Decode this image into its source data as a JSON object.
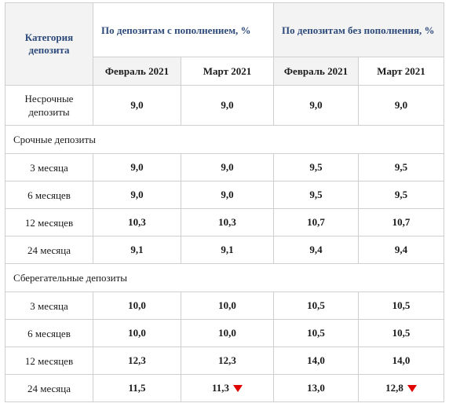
{
  "header": {
    "category": "Категория депозита",
    "group_with": "По депозитам с пополнением, %",
    "group_without": "По депозитам без пополнения, %",
    "months": [
      "Февраль 2021",
      "Март 2021",
      "Февраль 2021",
      "Март 2021"
    ]
  },
  "rows": [
    {
      "label": "Несрочные депозиты",
      "values": [
        "9,0",
        "9,0",
        "9,0",
        "9,0"
      ]
    },
    {
      "section": "Срочные  депозиты"
    },
    {
      "label": "3 месяца",
      "values": [
        "9,0",
        "9,0",
        "9,5",
        "9,5"
      ]
    },
    {
      "label": "6 месяцев",
      "values": [
        "9,0",
        "9,0",
        "9,5",
        "9,5"
      ]
    },
    {
      "label": "12 месяцев",
      "values": [
        "10,3",
        "10,3",
        "10,7",
        "10,7"
      ]
    },
    {
      "label": "24 месяца",
      "values": [
        "9,1",
        "9,1",
        "9,4",
        "9,4"
      ]
    },
    {
      "section": "Сберегательные  депозиты"
    },
    {
      "label": "3 месяца",
      "values": [
        "10,0",
        "10,0",
        "10,5",
        "10,5"
      ]
    },
    {
      "label": "6 месяцев",
      "values": [
        "10,0",
        "10,0",
        "10,5",
        "10,5"
      ]
    },
    {
      "label": "12 месяцев",
      "values": [
        "12,3",
        "12,3",
        "14,0",
        "14,0"
      ]
    },
    {
      "label": "24 месяца",
      "values": [
        "11,5",
        "11,3",
        "13,0",
        "12,8"
      ]
    }
  ],
  "decrease_marker": {
    "icon": "down-triangle-icon",
    "color": "#e00000"
  }
}
